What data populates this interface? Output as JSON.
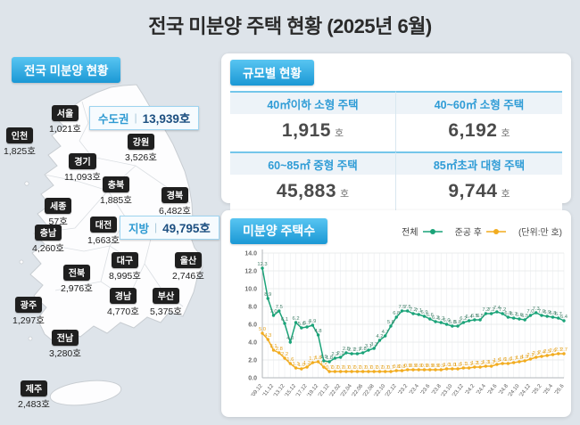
{
  "title": "전국 미분양 주택 현황  (2025년 6월)",
  "colors": {
    "background": "#dee4ea",
    "header_gradient_top": "#58c5f2",
    "header_gradient_bottom": "#1b98d5",
    "accent_blue": "#2f9cd6",
    "aggregate_value_blue": "#1c4f80",
    "value_gray": "#4b4b4b",
    "region_tag_bg": "#1f1f1f",
    "series_total_green": "#1aa378",
    "series_completed_orange": "#f2ac1f"
  },
  "map_panel": {
    "header": "전국 미분양 현황",
    "aggregates": [
      {
        "name": "수도권",
        "value": "13,939호"
      },
      {
        "name": "지방",
        "value": "49,795호"
      }
    ],
    "regions": [
      {
        "name": "서울",
        "value": "1,021호"
      },
      {
        "name": "인천",
        "value": "1,825호"
      },
      {
        "name": "강원",
        "value": "3,526호"
      },
      {
        "name": "경기",
        "value": "11,093호"
      },
      {
        "name": "충북",
        "value": "1,885호"
      },
      {
        "name": "경북",
        "value": "6,482호"
      },
      {
        "name": "세종",
        "value": "57호"
      },
      {
        "name": "대전",
        "value": "1,663호"
      },
      {
        "name": "충남",
        "value": "4,260호"
      },
      {
        "name": "대구",
        "value": "8,995호"
      },
      {
        "name": "울산",
        "value": "2,746호"
      },
      {
        "name": "전북",
        "value": "2,976호"
      },
      {
        "name": "경남",
        "value": "4,770호"
      },
      {
        "name": "부산",
        "value": "5,375호"
      },
      {
        "name": "광주",
        "value": "1,297호"
      },
      {
        "name": "전남",
        "value": "3,280호"
      },
      {
        "name": "제주",
        "value": "2,483호"
      }
    ]
  },
  "size_panel": {
    "header": "규모별 현황",
    "cells": [
      {
        "label": "40㎡이하 소형 주택",
        "value": "1,915",
        "unit": "호"
      },
      {
        "label": "40~60㎡ 소형 주택",
        "value": "6,192",
        "unit": "호"
      },
      {
        "label": "60~85㎡ 중형 주택",
        "value": "45,883",
        "unit": "호"
      },
      {
        "label": "85㎡초과 대형 주택",
        "value": "9,744",
        "unit": "호"
      }
    ]
  },
  "chart_panel": {
    "header": "미분양 주택수",
    "unit_note": "(단위:만 호)"
  },
  "chart_data": {
    "type": "line",
    "title": "미분양 주택수",
    "unit": "만 호",
    "ylim": [
      0,
      14
    ],
    "y_step": 2,
    "grid": true,
    "legend_position": "top-right",
    "tick_every": 2,
    "x_ticks": [
      "'09.12",
      "'11.12",
      "'13.12",
      "'15.12",
      "'17.12",
      "'19.12",
      "'21.12",
      "'22.02",
      "'22.04",
      "'22.06",
      "'22.08",
      "'22.10",
      "'22.12",
      "'23.2",
      "'23.4",
      "'23.6",
      "'23.8",
      "'23.10",
      "'23.12",
      "'24.2",
      "'24.4",
      "'24.6",
      "'24.8",
      "'24.10",
      "'24.12",
      "'25.2",
      "'25.4",
      "'25.6"
    ],
    "series": [
      {
        "name": "전체",
        "color": "#1aa378",
        "label_color": "#44806a",
        "values": [
          12.3,
          8.9,
          7.0,
          7.5,
          6.1,
          4.0,
          6.2,
          5.6,
          5.7,
          5.9,
          4.8,
          1.9,
          1.8,
          2.2,
          2.3,
          2.8,
          2.7,
          2.7,
          2.8,
          3.1,
          3.3,
          4.2,
          4.7,
          5.8,
          6.8,
          7.5,
          7.5,
          7.2,
          7.1,
          6.9,
          6.6,
          6.3,
          6.2,
          6.0,
          5.8,
          5.8,
          6.2,
          6.4,
          6.5,
          6.5,
          7.2,
          7.2,
          7.4,
          7.2,
          6.8,
          6.7,
          6.6,
          6.5,
          7.0,
          7.3,
          7.0,
          6.9,
          6.8,
          6.7,
          6.4
        ]
      },
      {
        "name": "준공 후",
        "color": "#f2ac1f",
        "label_color": "#e3a01a",
        "values": [
          5.0,
          4.3,
          3.1,
          2.8,
          2.2,
          1.6,
          1.1,
          1.0,
          1.2,
          1.7,
          1.8,
          1.2,
          0.7,
          0.7,
          0.7,
          0.7,
          0.7,
          0.7,
          0.7,
          0.7,
          0.7,
          0.7,
          0.7,
          0.7,
          0.8,
          0.8,
          0.9,
          0.9,
          0.9,
          0.9,
          0.9,
          0.9,
          0.9,
          1.0,
          1.0,
          1.0,
          1.1,
          1.1,
          1.2,
          1.2,
          1.3,
          1.3,
          1.5,
          1.6,
          1.6,
          1.7,
          1.8,
          1.9,
          2.1,
          2.3,
          2.4,
          2.5,
          2.6,
          2.7,
          2.7
        ]
      }
    ]
  }
}
